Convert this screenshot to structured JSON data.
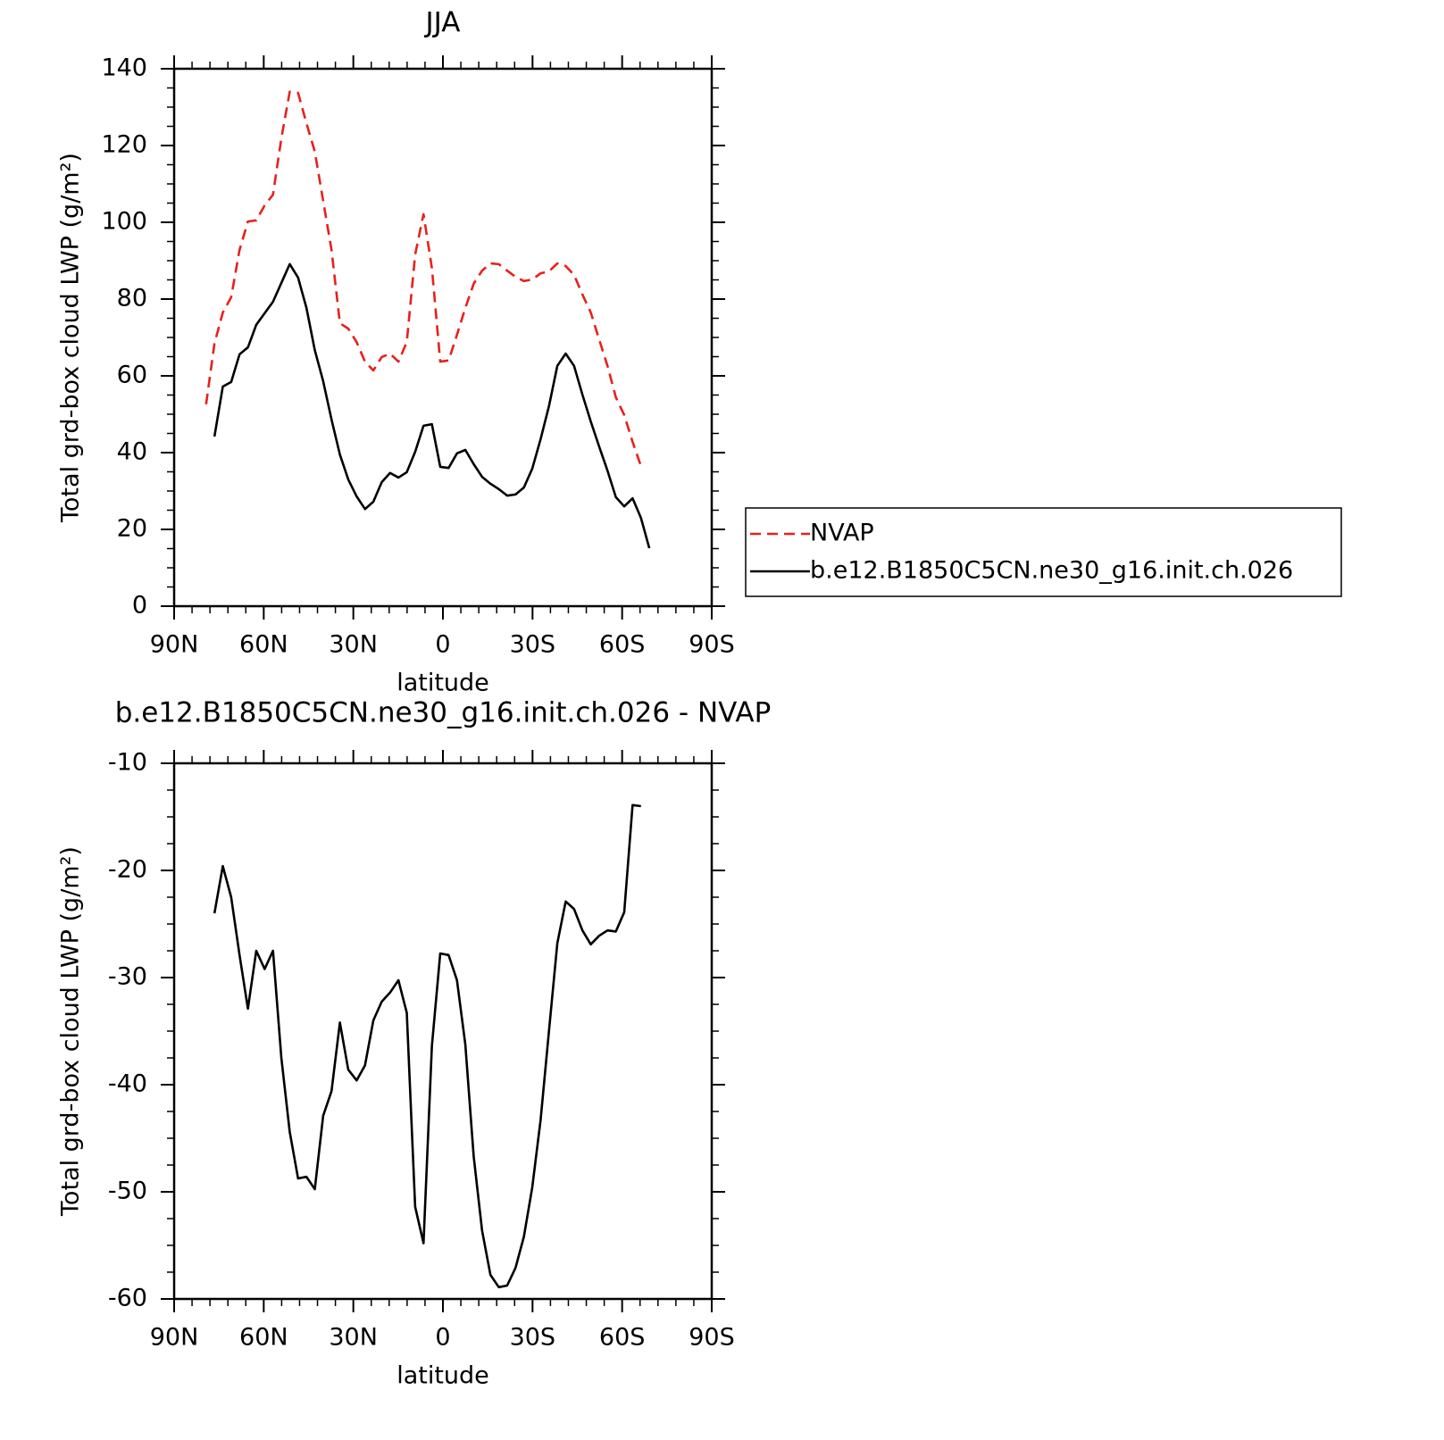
{
  "chart_data": [
    {
      "type": "line",
      "title": "JJA",
      "xlabel": "latitude",
      "ylabel": "Total grd-box cloud LWP (g/m²)",
      "xlim": [
        90,
        -90
      ],
      "xticks": [
        {
          "value": 90,
          "label": "90N"
        },
        {
          "value": 60,
          "label": "60N"
        },
        {
          "value": 30,
          "label": "30N"
        },
        0,
        {
          "value": -30,
          "label": "30S"
        },
        {
          "value": -60,
          "label": "60S"
        },
        {
          "value": -90,
          "label": "90S"
        }
      ],
      "ylim": [
        0,
        140
      ],
      "yticks": [
        0,
        20,
        40,
        60,
        80,
        100,
        120,
        140
      ],
      "legend": "right",
      "series": [
        {
          "name": "NVAP",
          "color": "#e8201c",
          "dashed": true,
          "x": [
            79.3,
            76.5,
            73.7,
            70.9,
            68.1,
            65.3,
            62.5,
            59.7,
            56.9,
            54.1,
            51.3,
            48.5,
            45.7,
            42.9,
            40.1,
            37.3,
            34.5,
            31.7,
            28.9,
            26.1,
            23.3,
            20.5,
            17.7,
            14.9,
            12.1,
            9.3,
            6.5,
            3.7,
            0.9,
            -1.9,
            -4.7,
            -7.5,
            -10.3,
            -13.1,
            -15.9,
            -18.7,
            -21.5,
            -24.3,
            -27.1,
            -29.9,
            -32.7,
            -35.5,
            -38.3,
            -41.1,
            -43.9,
            -46.7,
            -49.5,
            -52.3,
            -55.1,
            -57.9,
            -60.7,
            -63.5,
            -66.3
          ],
          "values": [
            52.6,
            68.4,
            76.5,
            80.5,
            92.8,
            100.2,
            100.5,
            104.4,
            107.2,
            121.9,
            134.0,
            133.7,
            125.8,
            118.4,
            105.6,
            92.8,
            73.7,
            72.3,
            68.8,
            63.7,
            61.4,
            64.9,
            65.8,
            63.7,
            68.8,
            91.6,
            102.1,
            88.1,
            63.7,
            64.0,
            70.7,
            77.7,
            84.0,
            87.4,
            89.3,
            89.1,
            87.4,
            85.8,
            84.7,
            85.1,
            86.7,
            87.2,
            89.3,
            88.6,
            86.3,
            81.2,
            76.5,
            69.5,
            62.6,
            54.4,
            49.8,
            42.8,
            36.5
          ]
        },
        {
          "name": "b.e12.B1850C5CN.ne30_g16.init.ch.026",
          "color": "#000000",
          "dashed": false,
          "x": [
            76.5,
            73.7,
            70.9,
            68.1,
            65.3,
            62.5,
            59.7,
            56.9,
            54.1,
            51.3,
            48.5,
            45.7,
            42.9,
            40.1,
            37.3,
            34.5,
            31.7,
            28.9,
            26.1,
            23.3,
            20.5,
            17.7,
            14.9,
            12.1,
            9.3,
            6.5,
            3.7,
            0.9,
            -1.9,
            -4.7,
            -7.5,
            -10.3,
            -13.1,
            -15.9,
            -18.7,
            -21.5,
            -24.3,
            -27.1,
            -29.9,
            -32.7,
            -35.5,
            -38.3,
            -41.1,
            -43.9,
            -46.7,
            -49.5,
            -52.3,
            -55.1,
            -57.9,
            -60.7,
            -63.5,
            -66.3,
            -69.1
          ],
          "values": [
            44.2,
            57.2,
            58.4,
            65.6,
            67.4,
            73.3,
            76.3,
            79.3,
            84.2,
            89.1,
            85.6,
            77.7,
            66.7,
            58.6,
            48.6,
            39.5,
            33.0,
            28.6,
            25.3,
            27.2,
            32.3,
            34.7,
            33.5,
            34.9,
            40.2,
            47.0,
            47.4,
            36.3,
            36.0,
            39.8,
            40.7,
            37.0,
            33.7,
            31.9,
            30.5,
            28.8,
            29.1,
            30.9,
            35.8,
            43.5,
            52.1,
            62.6,
            65.8,
            62.6,
            55.1,
            48.1,
            41.6,
            35.3,
            28.4,
            26.0,
            28.1,
            23.0,
            15.1
          ]
        }
      ]
    },
    {
      "type": "line",
      "title": "b.e12.B1850C5CN.ne30_g16.init.ch.026 - NVAP",
      "xlabel": "latitude",
      "ylabel": "Total grd-box cloud LWP (g/m²)",
      "xlim": [
        90,
        -90
      ],
      "xticks": [
        {
          "value": 90,
          "label": "90N"
        },
        {
          "value": 60,
          "label": "60N"
        },
        {
          "value": 30,
          "label": "30N"
        },
        0,
        {
          "value": -30,
          "label": "30S"
        },
        {
          "value": -60,
          "label": "60S"
        },
        {
          "value": -90,
          "label": "90S"
        }
      ],
      "ylim": [
        -60,
        -10
      ],
      "yticks": [
        -60,
        -50,
        -40,
        -30,
        -20,
        -10
      ],
      "color": "#000000",
      "x": [
        76.5,
        73.7,
        70.9,
        68.1,
        65.3,
        62.5,
        59.7,
        56.9,
        54.1,
        51.3,
        48.5,
        45.7,
        42.9,
        40.1,
        37.3,
        34.5,
        31.7,
        28.9,
        26.1,
        23.3,
        20.5,
        17.7,
        14.9,
        12.1,
        9.3,
        6.5,
        3.7,
        0.9,
        -1.9,
        -4.7,
        -7.5,
        -10.3,
        -13.1,
        -15.9,
        -18.7,
        -21.5,
        -24.3,
        -27.1,
        -29.9,
        -32.7,
        -35.5,
        -38.3,
        -41.1,
        -43.9,
        -46.7,
        -49.5,
        -52.3,
        -55.1,
        -57.9,
        -60.7,
        -63.5,
        -66.3
      ],
      "values": [
        -24.0,
        -19.6,
        -22.5,
        -27.9,
        -32.9,
        -27.5,
        -29.2,
        -27.5,
        -37.5,
        -44.4,
        -48.75,
        -48.6,
        -49.75,
        -42.9,
        -40.6,
        -34.2,
        -38.6,
        -39.6,
        -38.2,
        -34.0,
        -32.25,
        -31.4,
        -30.25,
        -33.3,
        -51.4,
        -54.8,
        -36.4,
        -27.75,
        -27.9,
        -30.25,
        -36.25,
        -46.7,
        -53.6,
        -57.75,
        -58.9,
        -58.75,
        -57.1,
        -54.2,
        -49.6,
        -43.3,
        -35.0,
        -26.8,
        -22.9,
        -23.6,
        -25.6,
        -26.9,
        -26.1,
        -25.6,
        -25.7,
        -23.9,
        -13.9,
        -14.0
      ]
    }
  ]
}
